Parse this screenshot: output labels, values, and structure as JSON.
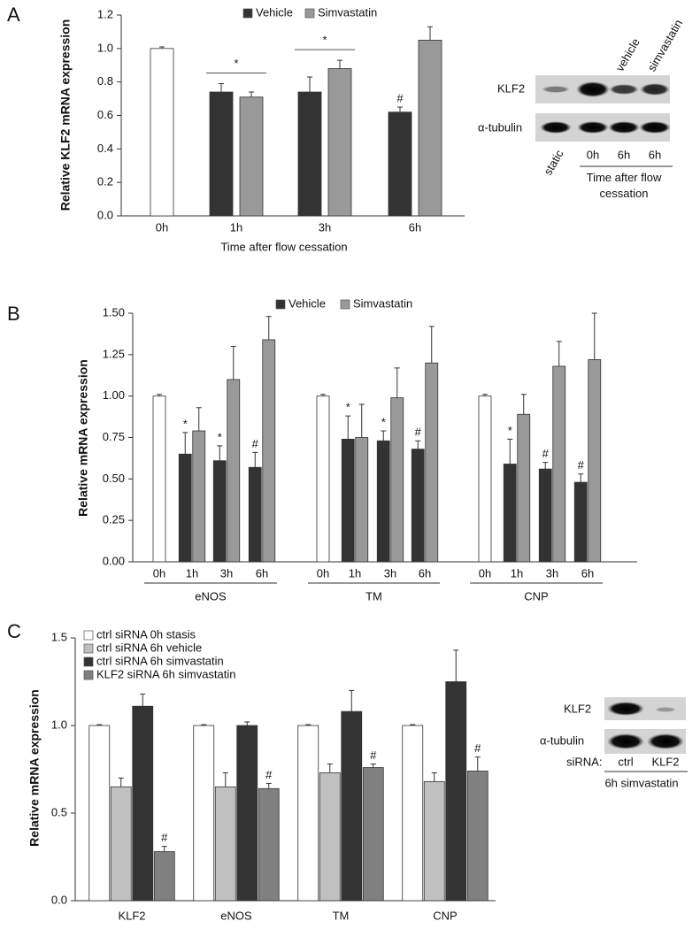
{
  "chart_data": [
    {
      "type": "bar",
      "panel": "A",
      "y_label": "Relative KLF2 mRNA expression",
      "x_label": "Time after flow cessation",
      "categories": [
        "0h",
        "1h",
        "3h",
        "6h"
      ],
      "series": [
        {
          "color": "#ffffff",
          "values": [
            1.0,
            null,
            null,
            null
          ],
          "errors": [
            0.01,
            null,
            null,
            null
          ]
        },
        {
          "name": "Vehicle",
          "color": "#333333",
          "values": [
            null,
            0.74,
            0.74,
            0.62
          ],
          "errors": [
            null,
            0.05,
            0.09,
            0.03
          ],
          "marks": [
            null,
            null,
            null,
            "#"
          ]
        },
        {
          "name": "Simvastatin",
          "color": "#999999",
          "values": [
            null,
            0.71,
            0.88,
            1.05
          ],
          "errors": [
            null,
            0.03,
            0.05,
            0.08
          ]
        }
      ],
      "pair_marks": [
        null,
        "*",
        "*",
        null
      ],
      "ylim": [
        0,
        1.2
      ],
      "yticks": [
        {
          "value": 0,
          "label": "0.0"
        },
        0.2,
        0.4,
        0.6,
        0.8,
        {
          "value": 1,
          "label": "1.0"
        },
        1.2
      ]
    },
    {
      "type": "bar",
      "panel": "B",
      "y_label": "Relative mRNA expression",
      "categories": [
        "0h",
        "1h",
        "3h",
        "6h",
        "0h",
        "1h",
        "3h",
        "6h",
        "0h",
        "1h",
        "3h",
        "6h"
      ],
      "groups": [
        "eNOS",
        "TM",
        "CNP"
      ],
      "series": [
        {
          "color": "#ffffff",
          "values": [
            1.0,
            null,
            null,
            null,
            1.0,
            null,
            null,
            null,
            1.0,
            null,
            null,
            null
          ],
          "errors": [
            0.01,
            null,
            null,
            null,
            0.01,
            null,
            null,
            null,
            0.01,
            null,
            null,
            null
          ]
        },
        {
          "name": "Vehicle",
          "color": "#333333",
          "values": [
            null,
            0.65,
            0.61,
            0.57,
            null,
            0.74,
            0.73,
            0.68,
            null,
            0.59,
            0.56,
            0.48
          ],
          "errors": [
            null,
            0.13,
            0.09,
            0.09,
            null,
            0.14,
            0.06,
            0.05,
            null,
            0.15,
            0.04,
            0.05
          ],
          "marks": [
            null,
            "*",
            "*",
            "#",
            null,
            "*",
            "*",
            "#",
            null,
            "*",
            "#",
            "#"
          ]
        },
        {
          "name": "Simvastatin",
          "color": "#999999",
          "values": [
            null,
            0.79,
            1.1,
            1.34,
            null,
            0.75,
            0.99,
            1.2,
            null,
            0.89,
            1.18,
            1.22
          ],
          "errors": [
            null,
            0.14,
            0.2,
            0.14,
            null,
            0.2,
            0.18,
            0.22,
            null,
            0.12,
            0.15,
            0.28
          ]
        }
      ],
      "ylim": [
        0,
        1.5
      ],
      "yticks": [
        {
          "value": 0,
          "label": "0.00"
        },
        0.25,
        {
          "value": 0.5,
          "label": "0.50"
        },
        0.75,
        {
          "value": 1,
          "label": "1.00"
        },
        1.25,
        {
          "value": 1.5,
          "label": "1.50"
        }
      ]
    },
    {
      "type": "bar",
      "panel": "C",
      "y_label": "Relative mRNA expression",
      "categories": [
        "KLF2",
        "eNOS",
        "TM",
        "CNP"
      ],
      "series": [
        {
          "name": "ctrl siRNA 0h stasis",
          "color": "#ffffff",
          "values": [
            1.0,
            1.0,
            1.0,
            1.0
          ],
          "errors": [
            0.005,
            0.005,
            0.005,
            0.005
          ]
        },
        {
          "name": "ctrl siRNA 6h vehicle",
          "color": "#c0c0c0",
          "values": [
            0.65,
            0.65,
            0.73,
            0.68
          ],
          "errors": [
            0.05,
            0.08,
            0.05,
            0.05
          ]
        },
        {
          "name": "ctrl siRNA 6h simvastatin",
          "color": "#333333",
          "values": [
            1.11,
            1.0,
            1.08,
            1.25
          ],
          "errors": [
            0.07,
            0.02,
            0.12,
            0.18
          ]
        },
        {
          "name": "KLF2 siRNA 6h simvastatin",
          "color": "#808080",
          "values": [
            0.28,
            0.64,
            0.76,
            0.74
          ],
          "errors": [
            0.03,
            0.03,
            0.02,
            0.08
          ],
          "marks": [
            "#",
            "#",
            "#",
            "#"
          ]
        }
      ],
      "ylim": [
        0,
        1.5
      ],
      "yticks": [
        {
          "value": 0,
          "label": "0.0"
        },
        {
          "value": 0.5,
          "label": "0.5"
        },
        {
          "value": 1,
          "label": "1.0"
        },
        {
          "value": 1.5,
          "label": "1.5"
        }
      ]
    }
  ],
  "blots": [
    {
      "panel": "A",
      "rows": [
        "KLF2",
        "α-tubulin"
      ],
      "lane_headers": [
        "vehicle",
        "simvastatin"
      ],
      "lanes": [
        "static",
        "0h",
        "6h",
        "6h"
      ],
      "caption": "Time after flow cessation"
    },
    {
      "panel": "C",
      "rows": [
        "KLF2",
        "α-tubulin"
      ],
      "lane_title": "siRNA:",
      "lanes": [
        "ctrl",
        "KLF2"
      ],
      "caption": "6h simvastatin"
    }
  ]
}
